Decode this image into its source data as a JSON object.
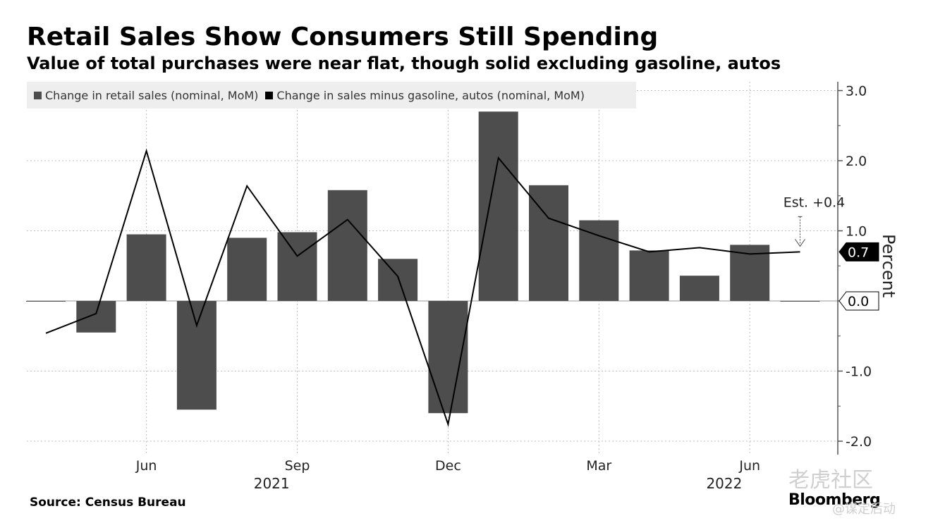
{
  "header": {
    "title": "Retail Sales Show Consumers Still Spending",
    "subtitle": "Value of total purchases were near flat, though solid excluding gasoline, autos"
  },
  "footer": {
    "source": "Source: Census Bureau",
    "brand": "Bloomberg",
    "watermark": "老虎社区",
    "watermark_small": "@谋定后动"
  },
  "chart_data": {
    "type": "bar",
    "title": "Retail Sales Show Consumers Still Spending",
    "ylabel": "Percent",
    "ylim": [
      -2.0,
      3.0
    ],
    "yticks": [
      "3.0",
      "2.0",
      "1.0",
      "0.0",
      "-1.0",
      "-2.0"
    ],
    "grid": true,
    "legend_position": "top-left",
    "x": [
      "2021-04",
      "2021-05",
      "2021-06",
      "2021-07",
      "2021-08",
      "2021-09",
      "2021-10",
      "2021-11",
      "2021-12",
      "2022-01",
      "2022-02",
      "2022-03",
      "2022-04",
      "2022-05",
      "2022-06",
      "2022-07"
    ],
    "xtick_labels": [
      {
        "index": 2,
        "label": "Jun"
      },
      {
        "index": 5,
        "label": "Sep"
      },
      {
        "index": 8,
        "label": "Dec"
      },
      {
        "index": 11,
        "label": "Mar"
      },
      {
        "index": 14,
        "label": "Jun"
      }
    ],
    "year_labels": [
      {
        "index": 4,
        "label": "2021"
      },
      {
        "index": 13,
        "label": "2022"
      }
    ],
    "series": [
      {
        "name": "Change in retail sales (nominal, MoM)",
        "kind": "bar",
        "color": "#4d4d4d",
        "values": [
          0.0,
          -0.45,
          0.95,
          -1.55,
          0.9,
          0.98,
          1.58,
          0.6,
          -1.6,
          2.7,
          1.65,
          1.15,
          0.72,
          0.36,
          0.8,
          0.0
        ]
      },
      {
        "name": "Change in sales minus gasoline, autos (nominal, MoM)",
        "kind": "line",
        "color": "#000000",
        "values": [
          -0.46,
          -0.18,
          2.14,
          -0.35,
          1.64,
          0.64,
          1.16,
          0.35,
          -1.76,
          2.04,
          1.18,
          0.93,
          0.7,
          0.76,
          0.67,
          0.7
        ]
      }
    ],
    "annotations": [
      {
        "text": "Est. +0.4",
        "index": 15,
        "value": 0.7
      }
    ],
    "end_labels": [
      {
        "text": "0.7",
        "value": 0.7,
        "style": "dark"
      },
      {
        "text": "0.0",
        "value": 0.0,
        "style": "light"
      }
    ]
  }
}
